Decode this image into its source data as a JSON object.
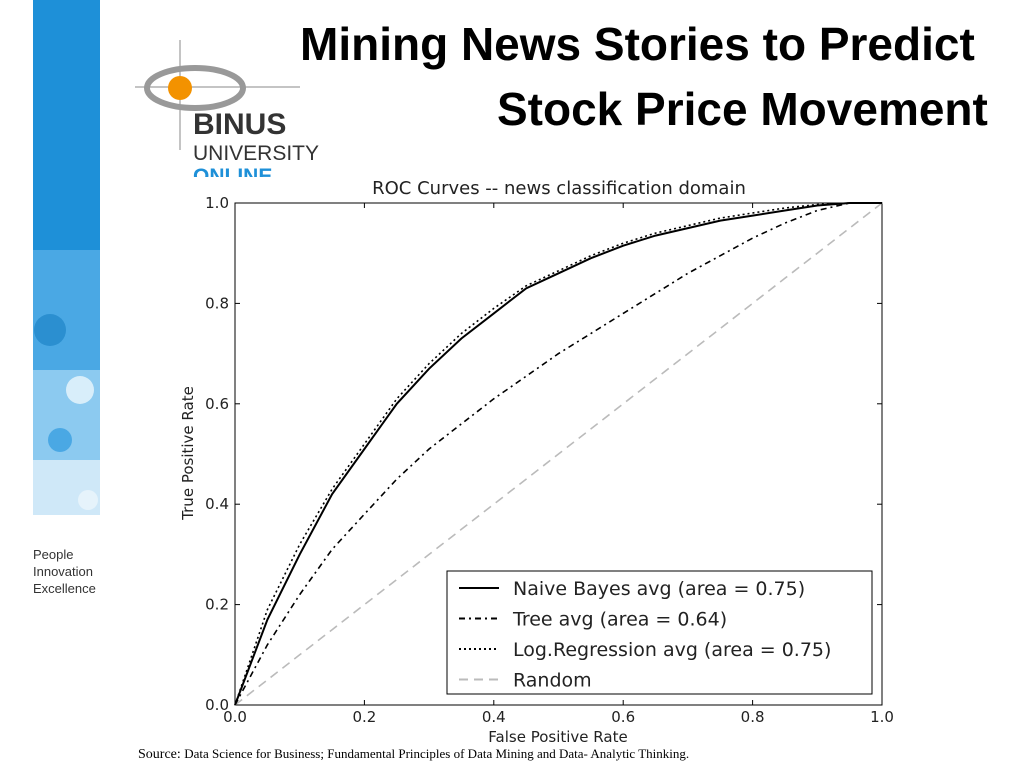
{
  "slide": {
    "title_lines": [
      "Mining News Stories to Predict",
      "Stock Price Movement"
    ],
    "logo": [
      "BINUS",
      "UNIVERSITY",
      "ONLINE"
    ],
    "tagline": [
      "People",
      "Innovation",
      "Excellence"
    ],
    "source_label": "Source:",
    "source_text": "Data Science for Business; Fundamental Principles of Data Mining and Data- Analytic Thinking."
  },
  "chart_data": {
    "type": "line",
    "title": "ROC Curves -- news classification domain",
    "x_label": "False Positive Rate",
    "y_label": "True Positive Rate",
    "xlim": [
      0,
      1
    ],
    "ylim": [
      0,
      1
    ],
    "xticks": [
      {
        "value": 0,
        "label": "0.0"
      },
      0.2,
      0.4,
      0.6,
      0.8,
      {
        "value": 1,
        "label": "1.0"
      }
    ],
    "yticks": [
      {
        "value": 0,
        "label": "0.0"
      },
      0.2,
      0.4,
      0.6,
      0.8,
      {
        "value": 1,
        "label": "1.0"
      }
    ],
    "grid": false,
    "legend": "lower right",
    "x": [
      0,
      0.05,
      0.1,
      0.15,
      0.2,
      0.25,
      0.3,
      0.35,
      0.4,
      0.45,
      0.5,
      0.55,
      0.6,
      0.65,
      0.7,
      0.75,
      0.8,
      0.85,
      0.9,
      0.95,
      1
    ],
    "series": [
      {
        "name": "Naive Bayes avg (area = 0.75)",
        "color": "#000000",
        "style": "solid",
        "values": [
          0,
          0.17,
          0.3,
          0.42,
          0.51,
          0.6,
          0.67,
          0.73,
          0.78,
          0.83,
          0.86,
          0.89,
          0.915,
          0.935,
          0.95,
          0.965,
          0.975,
          0.985,
          0.995,
          1,
          1
        ]
      },
      {
        "name": "Tree avg (area = 0.64)",
        "color": "#000000",
        "style": "dashdot",
        "values": [
          0,
          0.12,
          0.22,
          0.31,
          0.38,
          0.45,
          0.51,
          0.56,
          0.61,
          0.655,
          0.7,
          0.74,
          0.78,
          0.82,
          0.86,
          0.895,
          0.93,
          0.96,
          0.985,
          1,
          1
        ]
      },
      {
        "name": "Log.Regression avg (area = 0.75)",
        "color": "#000000",
        "style": "dotted",
        "values": [
          0,
          0.19,
          0.32,
          0.43,
          0.52,
          0.61,
          0.68,
          0.74,
          0.79,
          0.835,
          0.865,
          0.895,
          0.92,
          0.94,
          0.955,
          0.97,
          0.98,
          0.99,
          0.997,
          1,
          1
        ]
      },
      {
        "name": "Random",
        "color": "#bbbbbb",
        "style": "dashed",
        "values": [
          0,
          0.05,
          0.1,
          0.15,
          0.2,
          0.25,
          0.3,
          0.35,
          0.4,
          0.45,
          0.5,
          0.55,
          0.6,
          0.65,
          0.7,
          0.75,
          0.8,
          0.85,
          0.9,
          0.95,
          1
        ]
      }
    ]
  }
}
